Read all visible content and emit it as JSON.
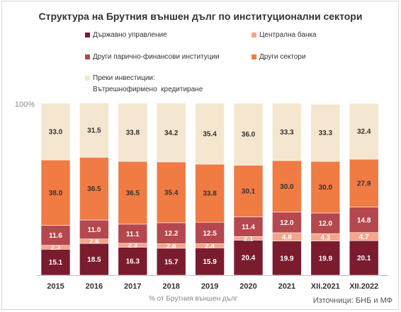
{
  "chart_data": {
    "type": "bar",
    "stacked": true,
    "title": "Структура на Брутния външен дълг по институционални сектори",
    "xlabel": "% от Брутния външен дълг",
    "ylabel": "",
    "ylim": [
      0,
      100
    ],
    "y_tick_label": "100%",
    "grid": false,
    "legend_position": "top",
    "categories": [
      "2015",
      "2016",
      "2017",
      "2018",
      "2019",
      "2020",
      "2021",
      "XII.2021",
      "XII.2022"
    ],
    "series": [
      {
        "name": "Държавно управление",
        "color": "#7a1c2e",
        "values": [
          15.1,
          18.5,
          16.3,
          15.7,
          15.9,
          20.4,
          19.9,
          19.9,
          20.1
        ]
      },
      {
        "name": "Централна банка",
        "color": "#f4a58a",
        "values": [
          2.3,
          2.6,
          2.3,
          2.6,
          2.4,
          2.1,
          4.8,
          4.3,
          4.7
        ]
      },
      {
        "name": "Други парично-финансови  институции",
        "color": "#b5474e",
        "values": [
          11.6,
          11.0,
          11.1,
          12.2,
          12.5,
          11.4,
          12.0,
          12.0,
          14.8
        ]
      },
      {
        "name": "Други сектори",
        "color": "#f07b43",
        "values": [
          38.0,
          36.5,
          36.5,
          35.4,
          33.8,
          30.1,
          30.0,
          30.0,
          27.9
        ]
      },
      {
        "name": "Преки инвестиции:\nВътрешнофирмено  кредитиране",
        "color": "#f5e6cf",
        "values": [
          33.0,
          31.5,
          33.8,
          34.2,
          35.4,
          36.0,
          33.3,
          33.3,
          32.4
        ]
      }
    ]
  },
  "source": "Източници: БНБ и МФ"
}
